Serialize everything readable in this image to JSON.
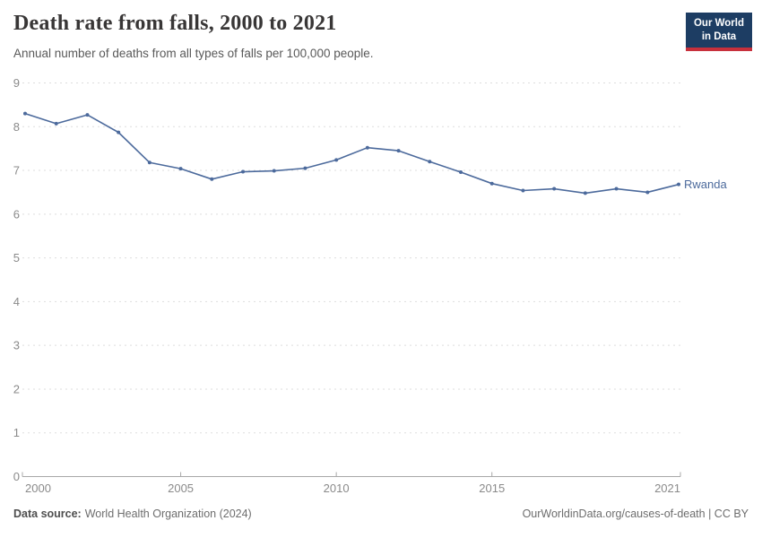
{
  "logo": {
    "line1": "Our World",
    "line2": "in Data",
    "background": "#1d3d63",
    "accent": "#c7303c"
  },
  "footer": {
    "source_label": "Data source:",
    "source_text": "World Health Organization (2024)",
    "attribution": "OurWorldinData.org/causes-of-death | CC BY"
  },
  "chart_data": {
    "type": "line",
    "title": "Death rate from falls, 2000 to 2021",
    "subtitle": "Annual number of deaths from all types of falls per 100,000 people.",
    "x": [
      2000,
      2001,
      2002,
      2003,
      2004,
      2005,
      2006,
      2007,
      2008,
      2009,
      2010,
      2011,
      2012,
      2013,
      2014,
      2015,
      2016,
      2017,
      2018,
      2019,
      2020,
      2021
    ],
    "series": [
      {
        "name": "Rwanda",
        "color": "#4c6a9c",
        "values": [
          8.3,
          8.07,
          8.27,
          7.87,
          7.18,
          7.04,
          6.8,
          6.97,
          6.99,
          7.05,
          7.24,
          7.52,
          7.45,
          7.2,
          6.96,
          6.7,
          6.54,
          6.58,
          6.48,
          6.58,
          6.5,
          6.68
        ]
      }
    ],
    "xlabel": "",
    "ylabel": "",
    "xlim": [
      2000,
      2021
    ],
    "ylim": [
      0,
      9
    ],
    "x_ticks": [
      2000,
      2005,
      2010,
      2015,
      2021
    ],
    "y_ticks": [
      0,
      1,
      2,
      3,
      4,
      5,
      6,
      7,
      8,
      9
    ],
    "grid": "horizontal-dashed",
    "legend": "end-of-line-label"
  }
}
